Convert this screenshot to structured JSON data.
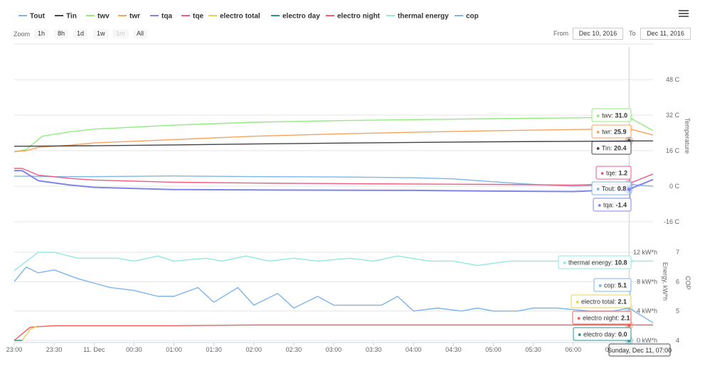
{
  "legend": [
    {
      "name": "Tout",
      "color": "#7cb5ec"
    },
    {
      "name": "Tin",
      "color": "#434348"
    },
    {
      "name": "twv",
      "color": "#90ed7d"
    },
    {
      "name": "twr",
      "color": "#f7a35c"
    },
    {
      "name": "tqa",
      "color": "#8085e9"
    },
    {
      "name": "tqe",
      "color": "#f15c80"
    },
    {
      "name": "electro total",
      "color": "#e4d354"
    },
    {
      "name": "electro day",
      "color": "#2b908f"
    },
    {
      "name": "electro night",
      "color": "#f45b5b"
    },
    {
      "name": "thermal energy",
      "color": "#91e8e1"
    },
    {
      "name": "cop",
      "color": "#7cb5ec"
    }
  ],
  "zoom": {
    "label": "Zoom",
    "buttons": [
      "1h",
      "8h",
      "1d",
      "1w",
      "1m",
      "All"
    ],
    "disabled": "1m"
  },
  "range": {
    "from_label": "From",
    "from_value": "Dec 10, 2016",
    "to_label": "To",
    "to_value": "Dec 11, 2016"
  },
  "menu_icon": "hamburger-menu-icon",
  "chart_data": {
    "type": "line",
    "x_ticks": [
      "23:00",
      "23:30",
      "11. Dec",
      "00:30",
      "01:00",
      "01:30",
      "02:00",
      "02:30",
      "03:00",
      "03:30",
      "04:00",
      "04:30",
      "05:00",
      "05:30",
      "06:00",
      "06:30"
    ],
    "x_range_hours": [
      23.0,
      31.0
    ],
    "panels": [
      {
        "ylabel": "Temperature",
        "y_ticks": [
          "48 C",
          "32 C",
          "16 C",
          "0 C",
          "-16 C"
        ],
        "y_tick_values": [
          48,
          32,
          16,
          0,
          -16
        ],
        "ylim": [
          -16,
          64
        ],
        "series": [
          {
            "name": "twv",
            "color": "#90ed7d",
            "x": [
              23.0,
              23.15,
              23.35,
              23.7,
              24.0,
              25.0,
              26.0,
              27.0,
              28.0,
              29.0,
              30.0,
              30.7,
              31.0
            ],
            "y": [
              15.5,
              16.5,
              22.5,
              24.5,
              25.7,
              27.5,
              28.8,
              29.5,
              30.0,
              30.4,
              30.8,
              31.0,
              25.0
            ]
          },
          {
            "name": "twr",
            "color": "#f7a35c",
            "x": [
              23.0,
              23.15,
              23.3,
              23.7,
              24.0,
              25.0,
              26.0,
              27.0,
              28.0,
              29.0,
              30.0,
              30.7,
              31.0
            ],
            "y": [
              15.5,
              16.0,
              17.5,
              18.5,
              19.5,
              21.0,
              22.5,
              23.5,
              24.3,
              25.0,
              25.5,
              25.9,
              23.0
            ]
          },
          {
            "name": "Tin",
            "color": "#434348",
            "x": [
              23.0,
              24.0,
              25.0,
              26.0,
              27.0,
              28.0,
              29.0,
              30.0,
              30.7,
              31.0
            ],
            "y": [
              18.0,
              18.2,
              18.6,
              19.0,
              19.4,
              19.7,
              20.0,
              20.2,
              20.4,
              20.4
            ]
          },
          {
            "name": "Tout",
            "color": "#7cb5ec",
            "x": [
              23.0,
              23.2,
              23.5,
              24.0,
              25.0,
              26.0,
              27.0,
              28.0,
              28.5,
              29.0,
              29.5,
              30.0,
              30.7,
              31.0
            ],
            "y": [
              4.5,
              4.5,
              4.3,
              4.3,
              4.6,
              4.3,
              4.2,
              3.8,
              3.3,
              2.0,
              0.8,
              0.0,
              0.8,
              0.0
            ]
          },
          {
            "name": "tqe",
            "color": "#f15c80",
            "x": [
              23.0,
              23.1,
              23.3,
              23.7,
              24.0,
              25.0,
              26.0,
              27.0,
              28.0,
              29.0,
              30.0,
              30.7,
              31.0
            ],
            "y": [
              8.0,
              8.0,
              5.0,
              3.5,
              2.8,
              1.8,
              1.4,
              1.2,
              1.0,
              0.8,
              0.5,
              1.2,
              5.5
            ]
          },
          {
            "name": "tqa",
            "color": "#8085e9",
            "x": [
              23.0,
              23.1,
              23.3,
              23.7,
              24.0,
              25.0,
              26.0,
              27.0,
              28.0,
              29.0,
              30.0,
              30.7,
              31.0
            ],
            "y": [
              7.0,
              7.0,
              2.5,
              0.5,
              -0.5,
              -1.5,
              -1.7,
              -1.8,
              -1.9,
              -2.2,
              -2.4,
              -1.4,
              3.0
            ]
          }
        ]
      },
      {
        "ylabel": "Energy, kW*h",
        "y_ticks": [
          "12 kW*h",
          "8 kW*h",
          "4 kW*h",
          "0 kW*h"
        ],
        "y_tick_values": [
          12,
          8,
          4,
          0
        ],
        "ylim": [
          0,
          12.5
        ],
        "series": [
          {
            "name": "thermal energy",
            "color": "#91e8e1",
            "x": [
              23.0,
              23.3,
              23.5,
              23.8,
              24.0,
              24.3,
              24.5,
              24.8,
              25.0,
              25.4,
              25.6,
              25.9,
              26.2,
              26.5,
              26.8,
              27.2,
              27.5,
              27.8,
              28.2,
              28.5,
              28.8,
              29.2,
              29.5,
              29.8,
              30.2,
              30.5,
              30.7,
              31.0
            ],
            "y": [
              9.5,
              12.0,
              12.0,
              11.2,
              11.2,
              11.2,
              10.8,
              11.5,
              10.8,
              11.2,
              10.8,
              11.5,
              10.8,
              11.2,
              10.8,
              11.2,
              10.8,
              11.5,
              10.8,
              10.8,
              10.2,
              10.8,
              10.8,
              10.8,
              10.8,
              10.8,
              10.8,
              10.8
            ]
          },
          {
            "name": "electro night",
            "color": "#f45b5b",
            "x": [
              23.0,
              23.2,
              23.5,
              24.0,
              25.0,
              26.0,
              27.0,
              28.0,
              29.0,
              30.0,
              30.7,
              31.0
            ],
            "y": [
              0.0,
              1.8,
              2.0,
              2.0,
              2.0,
              2.1,
              2.1,
              2.1,
              2.1,
              2.1,
              2.1,
              2.1
            ]
          },
          {
            "name": "electro total",
            "color": "#e4d354",
            "x": [
              23.0,
              23.1,
              23.2,
              23.3
            ],
            "y": [
              0.0,
              0.0,
              1.5,
              2.0
            ]
          },
          {
            "name": "electro day",
            "color": "#2b908f",
            "x": [
              23.0,
              23.1
            ],
            "y": [
              0.0,
              0.0
            ]
          }
        ]
      },
      {
        "ylabel": "COP",
        "y_ticks": [
          "7",
          "6",
          "5",
          "4"
        ],
        "y_tick_values": [
          7,
          6,
          5,
          4
        ],
        "ylim": [
          4,
          7.3
        ],
        "series": [
          {
            "name": "cop",
            "color": "#7cb5ec",
            "x": [
              23.0,
              23.15,
              23.3,
              23.5,
              23.8,
              24.2,
              24.5,
              24.8,
              25.0,
              25.3,
              25.5,
              25.8,
              26.0,
              26.3,
              26.5,
              26.8,
              27.0,
              27.3,
              27.6,
              27.8,
              28.0,
              28.3,
              28.6,
              28.8,
              29.0,
              29.3,
              29.5,
              29.8,
              30.2,
              30.5,
              30.7,
              31.0
            ],
            "y": [
              6.0,
              6.5,
              6.3,
              6.4,
              6.1,
              5.8,
              5.7,
              5.5,
              5.5,
              5.8,
              5.3,
              5.8,
              5.2,
              5.6,
              5.1,
              5.5,
              5.2,
              5.2,
              5.2,
              5.5,
              5.0,
              5.1,
              5.0,
              5.1,
              5.0,
              5.0,
              5.1,
              5.1,
              5.0,
              5.0,
              5.1,
              4.6
            ]
          }
        ]
      }
    ],
    "tooltip_time": "Sunday, Dec 11, 07:00",
    "tooltips": [
      {
        "name": "twv",
        "value": "31.0",
        "color": "#90ed7d"
      },
      {
        "name": "twr",
        "value": "25.9",
        "color": "#f7a35c"
      },
      {
        "name": "Tin",
        "value": "20.4",
        "color": "#434348"
      },
      {
        "name": "tqe",
        "value": "1.2",
        "color": "#f15c80"
      },
      {
        "name": "Tout",
        "value": "0.8",
        "color": "#7cb5ec"
      },
      {
        "name": "tqa",
        "value": "-1.4",
        "color": "#8085e9"
      },
      {
        "name": "thermal energy",
        "value": "10.8",
        "color": "#91e8e1"
      },
      {
        "name": "cop",
        "value": "5.1",
        "color": "#7cb5ec"
      },
      {
        "name": "electro total",
        "value": "2.1",
        "color": "#e4d354"
      },
      {
        "name": "electro night",
        "value": "2.1",
        "color": "#f45b5b"
      },
      {
        "name": "electro day",
        "value": "0.0",
        "color": "#2b908f"
      }
    ],
    "cursor_hour": 30.7
  }
}
